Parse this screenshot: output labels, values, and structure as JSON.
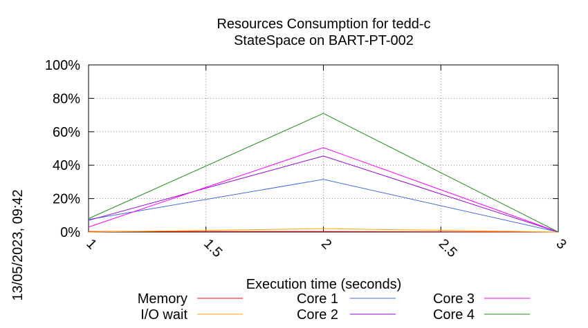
{
  "chart_data": {
    "type": "line",
    "title": "Resources Consumption for tedd-c",
    "subtitle": "StateSpace on BART-PT-002",
    "xlabel": "Execution time (seconds)",
    "ylabel": "",
    "x": [
      1,
      2,
      3
    ],
    "xlim": [
      1,
      3
    ],
    "ylim": [
      0,
      100
    ],
    "x_ticks": [
      1,
      1.5,
      2,
      2.5,
      3
    ],
    "y_ticks": [
      0,
      20,
      40,
      60,
      80,
      100
    ],
    "y_tick_labels": [
      "0%",
      "20%",
      "40%",
      "60%",
      "80%",
      "100%"
    ],
    "x_tick_labels": [
      "1",
      "1.5",
      "2",
      "2.5",
      "3"
    ],
    "grid": true,
    "legend_position": "bottom",
    "series": [
      {
        "name": "Memory",
        "color": "#ff0000",
        "values": [
          0.3,
          0.3,
          0
        ]
      },
      {
        "name": "I/O wait",
        "color": "#ffa500",
        "values": [
          0,
          2,
          0
        ]
      },
      {
        "name": "Core 1",
        "color": "#4169e1",
        "values": [
          7.5,
          31.5,
          0
        ]
      },
      {
        "name": "Core 2",
        "color": "#9400d3",
        "values": [
          7,
          45.5,
          0
        ]
      },
      {
        "name": "Core 3",
        "color": "#ff00ff",
        "values": [
          3,
          50.5,
          0
        ]
      },
      {
        "name": "Core 4",
        "color": "#228b22",
        "values": [
          8,
          71,
          0
        ]
      }
    ],
    "timestamp": "13/05/2023, 09:42"
  }
}
